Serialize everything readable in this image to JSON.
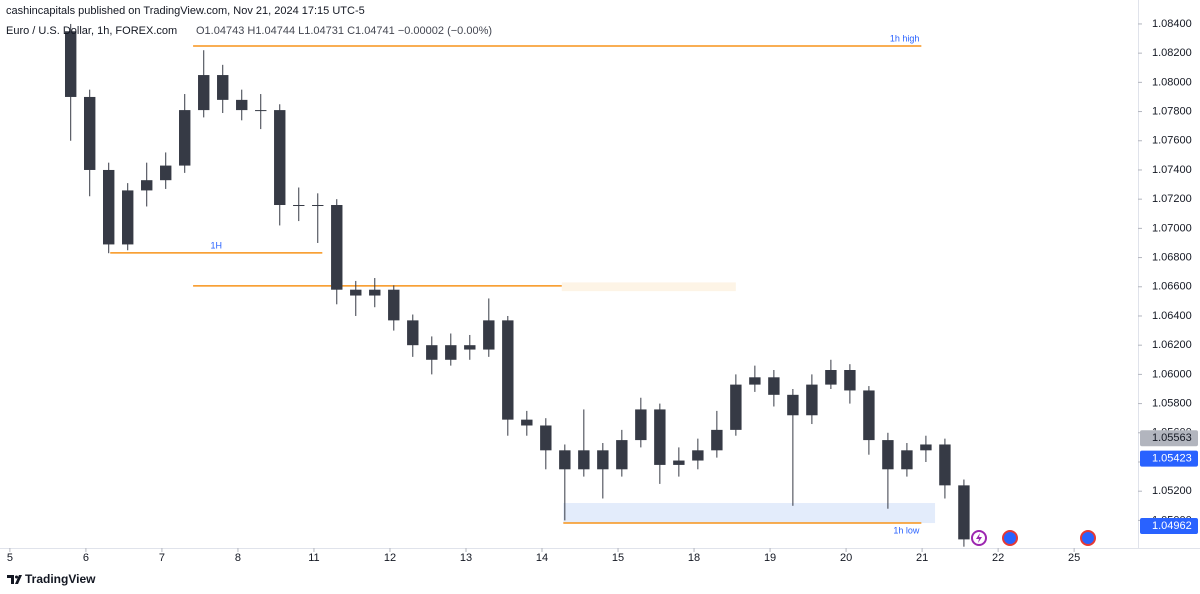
{
  "header": {
    "publisher": "cashincapitals published on TradingView.com, Nov 21, 2024 17:15 UTC-5",
    "symbol": "Euro / U.S. Dollar, 1h, FOREX.com",
    "ohlc": "O1.04743 H1.04744 L1.04731 C1.04741 −0.00002 (−0.00%)"
  },
  "chart_data": {
    "type": "candlestick",
    "color": "#363a45",
    "x": [
      0.8,
      1.05,
      1.3,
      1.55,
      1.8,
      2.05,
      2.3,
      2.55,
      2.8,
      3.05,
      3.3,
      3.55,
      3.8,
      4.05,
      4.3,
      4.55,
      4.8,
      5.05,
      5.3,
      5.55,
      5.8,
      6.05,
      6.3,
      6.55,
      6.8,
      7.05,
      7.3,
      7.55,
      7.8,
      8.05,
      8.3,
      8.55,
      8.8,
      9.05,
      9.3,
      9.55,
      9.8,
      10.05,
      10.3,
      10.55,
      10.8,
      11.05,
      11.3,
      11.55,
      11.8,
      12.05,
      12.3,
      12.55
    ],
    "open": [
      1.0835,
      1.079,
      1.074,
      1.0689,
      1.0726,
      1.0733,
      1.0743,
      1.0781,
      1.0805,
      1.0788,
      1.0781,
      1.0781,
      1.0716,
      1.0716,
      1.0716,
      1.0658,
      1.0654,
      1.0658,
      1.0637,
      1.062,
      1.061,
      1.062,
      1.0617,
      1.0637,
      1.0569,
      1.0565,
      1.0548,
      1.0535,
      1.0548,
      1.0535,
      1.0555,
      1.0576,
      1.0538,
      1.0541,
      1.0548,
      1.0562,
      1.0593,
      1.0598,
      1.0586,
      1.0572,
      1.0593,
      1.0603,
      1.0589,
      1.0555,
      1.0535,
      1.0548,
      1.0552,
      1.0524
    ],
    "high": [
      1.084,
      1.0795,
      1.0745,
      1.0731,
      1.0745,
      1.0752,
      1.0792,
      1.0822,
      1.0812,
      1.0795,
      1.0792,
      1.0785,
      1.0728,
      1.0724,
      1.072,
      1.0664,
      1.0666,
      1.0661,
      1.0641,
      1.0626,
      1.0628,
      1.0627,
      1.0652,
      1.064,
      1.0575,
      1.057,
      1.0552,
      1.0576,
      1.0553,
      1.0562,
      1.0584,
      1.058,
      1.055,
      1.0556,
      1.0575,
      1.06,
      1.0606,
      1.0603,
      1.059,
      1.06,
      1.061,
      1.0607,
      1.0592,
      1.056,
      1.0553,
      1.0558,
      1.0556,
      1.0528
    ],
    "low": [
      1.076,
      1.0722,
      1.0683,
      1.0685,
      1.0715,
      1.0727,
      1.0738,
      1.0776,
      1.0779,
      1.0774,
      1.0768,
      1.0702,
      1.0705,
      1.069,
      1.0648,
      1.064,
      1.0646,
      1.063,
      1.0612,
      1.06,
      1.0606,
      1.061,
      1.0612,
      1.0558,
      1.0558,
      1.0535,
      1.05,
      1.053,
      1.0515,
      1.053,
      1.055,
      1.0525,
      1.053,
      1.0535,
      1.0543,
      1.0558,
      1.0588,
      1.0578,
      1.051,
      1.0566,
      1.059,
      1.058,
      1.0545,
      1.0508,
      1.053,
      1.054,
      1.0515,
      1.0482
    ],
    "close": [
      1.079,
      1.074,
      1.0689,
      1.0726,
      1.0733,
      1.0743,
      1.0781,
      1.0805,
      1.0788,
      1.0781,
      1.0781,
      1.0716,
      1.0716,
      1.0716,
      1.0658,
      1.0654,
      1.0658,
      1.0637,
      1.062,
      1.061,
      1.062,
      1.0617,
      1.0637,
      1.0569,
      1.0565,
      1.0548,
      1.0535,
      1.0548,
      1.0535,
      1.0555,
      1.0576,
      1.0538,
      1.0541,
      1.0548,
      1.0562,
      1.0593,
      1.0598,
      1.0586,
      1.0572,
      1.0593,
      1.0603,
      1.0589,
      1.0555,
      1.0535,
      1.0548,
      1.0552,
      1.0524,
      1.0487
    ],
    "xlim": [
      -0.13,
      14.84
    ],
    "ylim": [
      1.04811,
      1.08564
    ],
    "xticks": [
      {
        "value": 0,
        "label": "5"
      },
      {
        "value": 1,
        "label": "6"
      },
      {
        "value": 2,
        "label": "7"
      },
      {
        "value": 3,
        "label": "8"
      },
      {
        "value": 4,
        "label": "11"
      },
      {
        "value": 5,
        "label": "12"
      },
      {
        "value": 6,
        "label": "13"
      },
      {
        "value": 7,
        "label": "14"
      },
      {
        "value": 8,
        "label": "15"
      },
      {
        "value": 9,
        "label": "18"
      },
      {
        "value": 10,
        "label": "19"
      },
      {
        "value": 11,
        "label": "20"
      },
      {
        "value": 12,
        "label": "21"
      },
      {
        "value": 13,
        "label": "22"
      },
      {
        "value": 14,
        "label": "25"
      }
    ],
    "yticks": [
      {
        "value": 1.084,
        "label": "1.08400"
      },
      {
        "value": 1.082,
        "label": "1.08200"
      },
      {
        "value": 1.08,
        "label": "1.08000"
      },
      {
        "value": 1.078,
        "label": "1.07800"
      },
      {
        "value": 1.076,
        "label": "1.07600"
      },
      {
        "value": 1.074,
        "label": "1.07400"
      },
      {
        "value": 1.072,
        "label": "1.07200"
      },
      {
        "value": 1.07,
        "label": "1.07000"
      },
      {
        "value": 1.068,
        "label": "1.06800"
      },
      {
        "value": 1.066,
        "label": "1.06600"
      },
      {
        "value": 1.064,
        "label": "1.06400"
      },
      {
        "value": 1.062,
        "label": "1.06200"
      },
      {
        "value": 1.06,
        "label": "1.06000"
      },
      {
        "value": 1.058,
        "label": "1.05800"
      },
      {
        "value": 1.056,
        "label": "1.05600"
      },
      {
        "value": 1.054,
        "label": "1.05400"
      },
      {
        "value": 1.052,
        "label": "1.05200"
      },
      {
        "value": 1.05,
        "label": "1.05000"
      }
    ],
    "grid": false,
    "zones": [
      {
        "x": [
          7.28,
          12.17
        ],
        "y": [
          1.04982,
          1.05119
        ],
        "color": "#e3ecfb"
      },
      {
        "x": [
          7.26,
          9.55
        ],
        "y": [
          1.0657,
          1.0663
        ],
        "color": "#fdf4e6"
      }
    ],
    "levels": [
      {
        "label": "1h high",
        "value": 1.08249,
        "x": [
          2.41,
          11.99
        ],
        "color": "#f7931a"
      },
      {
        "label": "1H",
        "value": 1.06832,
        "x": [
          1.32,
          4.11
        ],
        "color": "#f7931a"
      },
      {
        "value": 1.06606,
        "x": [
          2.41,
          7.26
        ],
        "color": "#f7931a"
      },
      {
        "label": "1h low",
        "value": 1.04982,
        "x": [
          7.28,
          11.99
        ],
        "color": "#f7931a"
      }
    ],
    "price_labels": [
      {
        "value": 1.05563,
        "color": "#b2b5be",
        "text_color": "#131722"
      },
      {
        "value": 1.05423,
        "color": "#2962ff",
        "text_color": "#ffffff"
      },
      {
        "value": 1.04962,
        "color": "#2962ff",
        "text_color": "#ffffff"
      }
    ]
  },
  "footer": {
    "brand": "TradingView"
  }
}
